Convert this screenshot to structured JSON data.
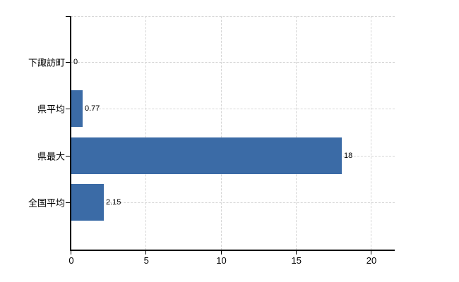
{
  "chart_data": {
    "type": "bar",
    "orientation": "horizontal",
    "title": "",
    "categories": [
      "下諏訪町",
      "県平均",
      "県最大",
      "全国平均"
    ],
    "values": [
      0,
      0.77,
      18,
      2.15
    ],
    "value_labels": [
      "0",
      "0.77",
      "18",
      "2.15"
    ],
    "x_ticks": [
      0,
      5,
      10,
      15,
      20
    ],
    "x_tick_labels": [
      "0",
      "5",
      "10",
      "15",
      "20"
    ],
    "xlim": [
      0,
      21.6
    ],
    "grid": "dashed",
    "legend": "none",
    "colors": {
      "bar": "#3b6ba6",
      "grid": "#d6d6d6",
      "axis": "#000000",
      "text": "#000000",
      "background": "#ffffff"
    }
  }
}
